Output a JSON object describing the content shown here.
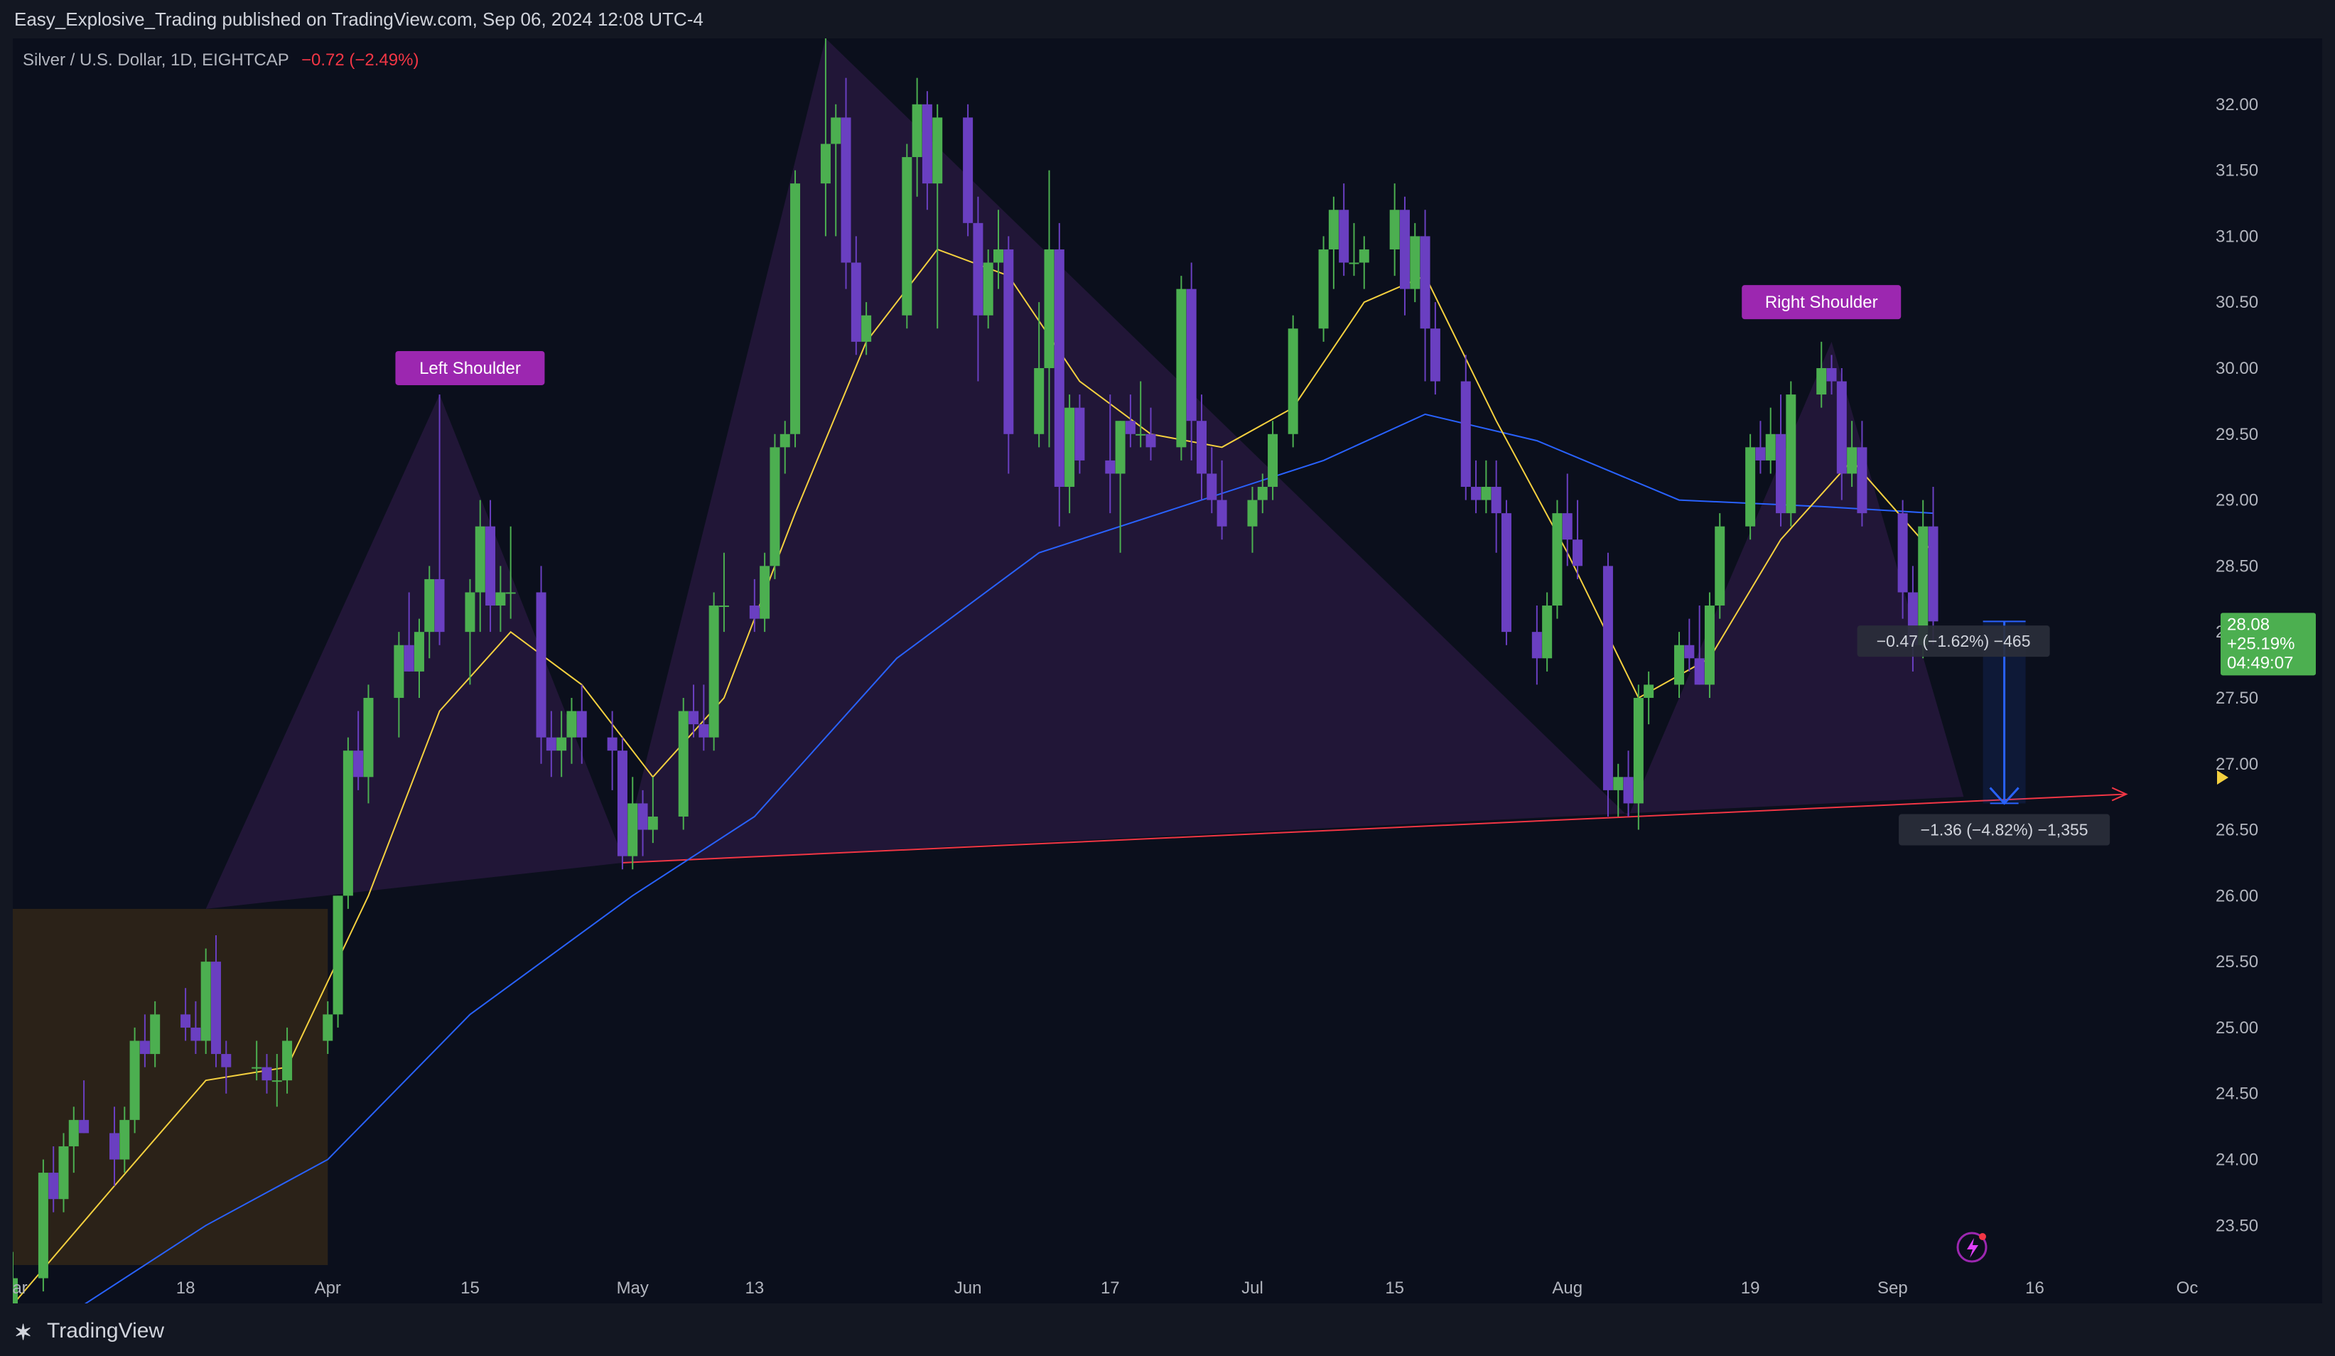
{
  "header": {
    "publisher": "Easy_Explosive_Trading published on TradingView.com, Sep 06, 2024 12:08 UTC-4"
  },
  "footer": {
    "brand": "TradingView",
    "logo_icon": "tradingview-logo-icon"
  },
  "colors": {
    "bg": "#0b0f1c",
    "bull": "#4caf50",
    "bear": "#6a3fc1",
    "ema_fast": "#f4d03f",
    "ema_slow": "#2962ff",
    "pattern_fill": "#2a1a40",
    "neckline": "#f23645",
    "badge_bg": "#9c27b0",
    "price_tag": "#4caf50"
  },
  "chart_data": {
    "type": "candlestick",
    "symbol_legend": "Silver / U.S. Dollar, 1D, EIGHTCAP",
    "change_text": "−0.72 (−2.49%)",
    "y_ticks": [
      "23.50",
      "24.00",
      "24.50",
      "25.00",
      "25.50",
      "26.00",
      "26.50",
      "27.00",
      "27.50",
      "28.00",
      "28.50",
      "29.00",
      "29.50",
      "30.00",
      "30.50",
      "31.00",
      "31.50",
      "32.00"
    ],
    "ylim": [
      23.2,
      32.5
    ],
    "x_ticks": [
      {
        "label": "Mar",
        "date": "2024-03-01"
      },
      {
        "label": "18",
        "date": "2024-03-18"
      },
      {
        "label": "Apr",
        "date": "2024-04-01"
      },
      {
        "label": "15",
        "date": "2024-04-15"
      },
      {
        "label": "May",
        "date": "2024-05-01"
      },
      {
        "label": "13",
        "date": "2024-05-13"
      },
      {
        "label": "Jun",
        "date": "2024-06-03"
      },
      {
        "label": "17",
        "date": "2024-06-17"
      },
      {
        "label": "Jul",
        "date": "2024-07-01"
      },
      {
        "label": "15",
        "date": "2024-07-15"
      },
      {
        "label": "Aug",
        "date": "2024-08-01"
      },
      {
        "label": "19",
        "date": "2024-08-19"
      },
      {
        "label": "Sep",
        "date": "2024-09-02"
      },
      {
        "label": "16",
        "date": "2024-09-16"
      },
      {
        "label": "Oc",
        "date": "2024-10-01"
      }
    ],
    "xlim": [
      "2024-03-01",
      "2024-10-01"
    ],
    "candles": [
      [
        "2024-03-01",
        22.8,
        23.3,
        22.7,
        23.1
      ],
      [
        "2024-03-04",
        23.1,
        24.0,
        23.0,
        23.9
      ],
      [
        "2024-03-05",
        23.9,
        24.1,
        23.6,
        23.7
      ],
      [
        "2024-03-06",
        23.7,
        24.2,
        23.6,
        24.1
      ],
      [
        "2024-03-07",
        24.1,
        24.4,
        23.9,
        24.3
      ],
      [
        "2024-03-08",
        24.3,
        24.6,
        24.2,
        24.2
      ],
      [
        "2024-03-11",
        24.2,
        24.4,
        23.8,
        24.0
      ],
      [
        "2024-03-12",
        24.0,
        24.4,
        23.9,
        24.3
      ],
      [
        "2024-03-13",
        24.3,
        25.0,
        24.2,
        24.9
      ],
      [
        "2024-03-14",
        24.9,
        25.1,
        24.7,
        24.8
      ],
      [
        "2024-03-15",
        24.8,
        25.2,
        24.7,
        25.1
      ],
      [
        "2024-03-18",
        25.1,
        25.3,
        24.9,
        25.0
      ],
      [
        "2024-03-19",
        25.0,
        25.2,
        24.8,
        24.9
      ],
      [
        "2024-03-20",
        24.9,
        25.6,
        24.8,
        25.5
      ],
      [
        "2024-03-21",
        25.5,
        25.7,
        24.7,
        24.8
      ],
      [
        "2024-03-22",
        24.8,
        24.9,
        24.5,
        24.7
      ],
      [
        "2024-03-25",
        24.7,
        24.9,
        24.6,
        24.7
      ],
      [
        "2024-03-26",
        24.7,
        24.8,
        24.5,
        24.6
      ],
      [
        "2024-03-27",
        24.6,
        24.8,
        24.4,
        24.6
      ],
      [
        "2024-03-28",
        24.6,
        25.0,
        24.5,
        24.9
      ],
      [
        "2024-04-01",
        24.9,
        25.2,
        24.8,
        25.1
      ],
      [
        "2024-04-02",
        25.1,
        26.0,
        25.0,
        26.0
      ],
      [
        "2024-04-03",
        26.0,
        27.2,
        25.9,
        27.1
      ],
      [
        "2024-04-04",
        27.1,
        27.4,
        26.8,
        26.9
      ],
      [
        "2024-04-05",
        26.9,
        27.6,
        26.7,
        27.5
      ],
      [
        "2024-04-08",
        27.5,
        28.0,
        27.2,
        27.9
      ],
      [
        "2024-04-09",
        27.9,
        28.3,
        27.7,
        27.7
      ],
      [
        "2024-04-10",
        27.7,
        28.1,
        27.5,
        28.0
      ],
      [
        "2024-04-11",
        28.0,
        28.5,
        27.8,
        28.4
      ],
      [
        "2024-04-12",
        28.4,
        29.8,
        27.9,
        28.0
      ],
      [
        "2024-04-15",
        28.0,
        28.4,
        27.6,
        28.3
      ],
      [
        "2024-04-16",
        28.3,
        29.0,
        28.0,
        28.8
      ],
      [
        "2024-04-17",
        28.8,
        29.0,
        28.0,
        28.2
      ],
      [
        "2024-04-18",
        28.2,
        28.5,
        28.0,
        28.3
      ],
      [
        "2024-04-19",
        28.3,
        28.8,
        28.1,
        28.3
      ],
      [
        "2024-04-22",
        28.3,
        28.5,
        27.0,
        27.2
      ],
      [
        "2024-04-23",
        27.2,
        27.4,
        26.9,
        27.1
      ],
      [
        "2024-04-24",
        27.1,
        27.4,
        26.9,
        27.2
      ],
      [
        "2024-04-25",
        27.2,
        27.5,
        27.0,
        27.4
      ],
      [
        "2024-04-26",
        27.4,
        27.6,
        27.0,
        27.2
      ],
      [
        "2024-04-29",
        27.2,
        27.4,
        26.8,
        27.1
      ],
      [
        "2024-04-30",
        27.1,
        27.2,
        26.2,
        26.3
      ],
      [
        "2024-05-01",
        26.3,
        26.9,
        26.2,
        26.7
      ],
      [
        "2024-05-02",
        26.7,
        26.8,
        26.3,
        26.5
      ],
      [
        "2024-05-03",
        26.5,
        26.9,
        26.4,
        26.6
      ],
      [
        "2024-05-06",
        26.6,
        27.5,
        26.5,
        27.4
      ],
      [
        "2024-05-07",
        27.4,
        27.6,
        27.2,
        27.3
      ],
      [
        "2024-05-08",
        27.3,
        27.6,
        27.1,
        27.2
      ],
      [
        "2024-05-09",
        27.2,
        28.3,
        27.1,
        28.2
      ],
      [
        "2024-05-10",
        28.2,
        28.6,
        28.0,
        28.2
      ],
      [
        "2024-05-13",
        28.2,
        28.4,
        28.0,
        28.1
      ],
      [
        "2024-05-14",
        28.1,
        28.6,
        28.0,
        28.5
      ],
      [
        "2024-05-15",
        28.5,
        29.5,
        28.4,
        29.4
      ],
      [
        "2024-05-16",
        29.4,
        29.6,
        29.2,
        29.5
      ],
      [
        "2024-05-17",
        29.5,
        31.5,
        29.4,
        31.4
      ],
      [
        "2024-05-20",
        31.4,
        32.5,
        31.0,
        31.7
      ],
      [
        "2024-05-21",
        31.7,
        32.0,
        31.0,
        31.9
      ],
      [
        "2024-05-22",
        31.9,
        32.2,
        30.6,
        30.8
      ],
      [
        "2024-05-23",
        30.8,
        31.0,
        30.1,
        30.2
      ],
      [
        "2024-05-24",
        30.2,
        30.5,
        30.1,
        30.4
      ],
      [
        "2024-05-28",
        30.4,
        31.7,
        30.3,
        31.6
      ],
      [
        "2024-05-29",
        31.6,
        32.2,
        31.3,
        32.0
      ],
      [
        "2024-05-30",
        32.0,
        32.1,
        31.2,
        31.4
      ],
      [
        "2024-05-31",
        31.4,
        32.0,
        30.3,
        31.9
      ],
      [
        "2024-06-03",
        31.9,
        32.0,
        31.0,
        31.1
      ],
      [
        "2024-06-04",
        31.1,
        31.3,
        29.9,
        30.4
      ],
      [
        "2024-06-05",
        30.4,
        30.9,
        30.3,
        30.8
      ],
      [
        "2024-06-06",
        30.8,
        31.2,
        30.6,
        30.9
      ],
      [
        "2024-06-07",
        30.9,
        31.0,
        29.2,
        29.5
      ],
      [
        "2024-06-10",
        29.5,
        30.5,
        29.4,
        30.0
      ],
      [
        "2024-06-11",
        30.0,
        31.5,
        29.4,
        30.9
      ],
      [
        "2024-06-12",
        30.9,
        31.1,
        28.8,
        29.1
      ],
      [
        "2024-06-13",
        29.1,
        29.8,
        28.9,
        29.7
      ],
      [
        "2024-06-14",
        29.7,
        29.8,
        29.2,
        29.3
      ],
      [
        "2024-06-17",
        29.3,
        29.8,
        28.9,
        29.2
      ],
      [
        "2024-06-18",
        29.2,
        29.6,
        28.6,
        29.6
      ],
      [
        "2024-06-19",
        29.6,
        29.8,
        29.4,
        29.5
      ],
      [
        "2024-06-20",
        29.5,
        29.9,
        29.4,
        29.5
      ],
      [
        "2024-06-21",
        29.5,
        29.7,
        29.3,
        29.4
      ],
      [
        "2024-06-24",
        29.4,
        30.7,
        29.3,
        30.6
      ],
      [
        "2024-06-25",
        30.6,
        30.8,
        29.3,
        29.6
      ],
      [
        "2024-06-26",
        29.6,
        29.8,
        29.0,
        29.2
      ],
      [
        "2024-06-27",
        29.2,
        29.4,
        28.9,
        29.0
      ],
      [
        "2024-06-28",
        29.0,
        29.3,
        28.7,
        28.8
      ],
      [
        "2024-07-01",
        28.8,
        29.1,
        28.6,
        29.0
      ],
      [
        "2024-07-02",
        29.0,
        29.2,
        28.9,
        29.1
      ],
      [
        "2024-07-03",
        29.1,
        29.6,
        29.0,
        29.5
      ],
      [
        "2024-07-05",
        29.5,
        30.4,
        29.4,
        30.3
      ],
      [
        "2024-07-08",
        30.3,
        31.0,
        30.2,
        30.9
      ],
      [
        "2024-07-09",
        30.9,
        31.3,
        30.6,
        31.2
      ],
      [
        "2024-07-10",
        31.2,
        31.4,
        30.7,
        30.8
      ],
      [
        "2024-07-11",
        30.8,
        31.1,
        30.7,
        30.8
      ],
      [
        "2024-07-12",
        30.8,
        31.0,
        30.6,
        30.9
      ],
      [
        "2024-07-15",
        30.9,
        31.4,
        30.7,
        31.2
      ],
      [
        "2024-07-16",
        31.2,
        31.3,
        30.4,
        30.6
      ],
      [
        "2024-07-17",
        30.6,
        31.1,
        30.5,
        31.0
      ],
      [
        "2024-07-18",
        31.0,
        31.2,
        29.9,
        30.3
      ],
      [
        "2024-07-19",
        30.3,
        30.5,
        29.8,
        29.9
      ],
      [
        "2024-07-22",
        29.9,
        30.1,
        29.0,
        29.1
      ],
      [
        "2024-07-23",
        29.1,
        29.3,
        28.9,
        29.0
      ],
      [
        "2024-07-24",
        29.0,
        29.3,
        28.9,
        29.1
      ],
      [
        "2024-07-25",
        29.1,
        29.3,
        28.6,
        28.9
      ],
      [
        "2024-07-26",
        28.9,
        29.0,
        27.9,
        28.0
      ],
      [
        "2024-07-29",
        28.0,
        28.2,
        27.6,
        27.8
      ],
      [
        "2024-07-30",
        27.8,
        28.3,
        27.7,
        28.2
      ],
      [
        "2024-07-31",
        28.2,
        29.0,
        28.1,
        28.9
      ],
      [
        "2024-08-01",
        28.9,
        29.2,
        28.5,
        28.7
      ],
      [
        "2024-08-02",
        28.7,
        29.0,
        28.4,
        28.5
      ],
      [
        "2024-08-05",
        28.5,
        28.6,
        26.6,
        26.8
      ],
      [
        "2024-08-06",
        26.8,
        27.0,
        26.6,
        26.9
      ],
      [
        "2024-08-07",
        26.9,
        27.1,
        26.6,
        26.7
      ],
      [
        "2024-08-08",
        26.7,
        27.6,
        26.5,
        27.5
      ],
      [
        "2024-08-09",
        27.5,
        27.7,
        27.3,
        27.6
      ],
      [
        "2024-08-12",
        27.6,
        28.0,
        27.5,
        27.9
      ],
      [
        "2024-08-13",
        27.9,
        28.1,
        27.7,
        27.8
      ],
      [
        "2024-08-14",
        27.8,
        28.2,
        27.6,
        27.6
      ],
      [
        "2024-08-15",
        27.6,
        28.3,
        27.5,
        28.2
      ],
      [
        "2024-08-16",
        28.2,
        28.9,
        28.1,
        28.8
      ],
      [
        "2024-08-19",
        28.8,
        29.5,
        28.7,
        29.4
      ],
      [
        "2024-08-20",
        29.4,
        29.6,
        29.2,
        29.3
      ],
      [
        "2024-08-21",
        29.3,
        29.7,
        29.2,
        29.5
      ],
      [
        "2024-08-22",
        29.5,
        29.8,
        28.8,
        28.9
      ],
      [
        "2024-08-23",
        28.9,
        29.9,
        28.8,
        29.8
      ],
      [
        "2024-08-26",
        29.8,
        30.2,
        29.7,
        30.0
      ],
      [
        "2024-08-27",
        30.0,
        30.1,
        29.8,
        29.9
      ],
      [
        "2024-08-28",
        29.9,
        30.0,
        29.0,
        29.2
      ],
      [
        "2024-08-29",
        29.2,
        29.6,
        29.1,
        29.4
      ],
      [
        "2024-08-30",
        29.4,
        29.6,
        28.8,
        28.9
      ],
      [
        "2024-09-03",
        28.9,
        29.0,
        28.1,
        28.3
      ],
      [
        "2024-09-04",
        28.3,
        28.5,
        27.7,
        27.9
      ],
      [
        "2024-09-05",
        27.9,
        29.0,
        27.8,
        28.8
      ],
      [
        "2024-09-06",
        28.8,
        29.1,
        27.9,
        28.08
      ]
    ],
    "ema_fast": [
      [
        "2024-03-01",
        22.9
      ],
      [
        "2024-03-11",
        23.8
      ],
      [
        "2024-03-20",
        24.6
      ],
      [
        "2024-03-28",
        24.7
      ],
      [
        "2024-04-05",
        26.0
      ],
      [
        "2024-04-12",
        27.4
      ],
      [
        "2024-04-19",
        28.0
      ],
      [
        "2024-04-26",
        27.6
      ],
      [
        "2024-05-03",
        26.9
      ],
      [
        "2024-05-10",
        27.5
      ],
      [
        "2024-05-17",
        28.9
      ],
      [
        "2024-05-24",
        30.2
      ],
      [
        "2024-05-31",
        30.9
      ],
      [
        "2024-06-07",
        30.7
      ],
      [
        "2024-06-14",
        29.9
      ],
      [
        "2024-06-21",
        29.5
      ],
      [
        "2024-06-28",
        29.4
      ],
      [
        "2024-07-05",
        29.7
      ],
      [
        "2024-07-12",
        30.5
      ],
      [
        "2024-07-18",
        30.7
      ],
      [
        "2024-07-25",
        29.6
      ],
      [
        "2024-08-01",
        28.6
      ],
      [
        "2024-08-08",
        27.5
      ],
      [
        "2024-08-15",
        27.8
      ],
      [
        "2024-08-22",
        28.7
      ],
      [
        "2024-08-29",
        29.3
      ],
      [
        "2024-09-06",
        28.6
      ]
    ],
    "ema_slow": [
      [
        "2024-03-08",
        22.9
      ],
      [
        "2024-03-20",
        23.5
      ],
      [
        "2024-04-01",
        24.0
      ],
      [
        "2024-04-15",
        25.1
      ],
      [
        "2024-05-01",
        26.0
      ],
      [
        "2024-05-13",
        26.6
      ],
      [
        "2024-05-27",
        27.8
      ],
      [
        "2024-06-10",
        28.6
      ],
      [
        "2024-06-24",
        28.95
      ],
      [
        "2024-07-08",
        29.3
      ],
      [
        "2024-07-18",
        29.65
      ],
      [
        "2024-07-29",
        29.45
      ],
      [
        "2024-08-12",
        29.0
      ],
      [
        "2024-08-26",
        28.95
      ],
      [
        "2024-09-06",
        28.9
      ]
    ],
    "pattern_points": [
      [
        "2024-03-20",
        25.9
      ],
      [
        "2024-04-12",
        29.8
      ],
      [
        "2024-04-30",
        26.3
      ],
      [
        "2024-05-20",
        32.5
      ],
      [
        "2024-08-07",
        26.6
      ],
      [
        "2024-08-27",
        30.2
      ],
      [
        "2024-09-09",
        26.75
      ]
    ],
    "neckline": [
      [
        "2024-04-30",
        26.25
      ],
      [
        "2024-09-25",
        26.77
      ]
    ],
    "shoulder_labels": [
      {
        "text": "Left Shoulder",
        "date": "2024-04-15",
        "price": 30.0
      },
      {
        "text": "Right Shoulder",
        "date": "2024-08-26",
        "price": 30.5
      }
    ],
    "consolidation_box": {
      "x0": "2024-03-01",
      "x1": "2024-04-01",
      "y0": 23.2,
      "y1": 25.9
    },
    "measure_arrow": {
      "date": "2024-09-13",
      "from": 28.08,
      "to": 26.7
    },
    "measure_labels": [
      {
        "text": "−0.47 (−1.62%) −465",
        "date": "2024-09-08",
        "price": 27.93
      },
      {
        "text": "−1.36 (−4.82%) −1,355",
        "date": "2024-09-13",
        "price": 26.5
      }
    ],
    "last_price": {
      "price": "28.08",
      "change": "+25.19%",
      "countdown": "04:49:07",
      "value": 28.08
    }
  }
}
